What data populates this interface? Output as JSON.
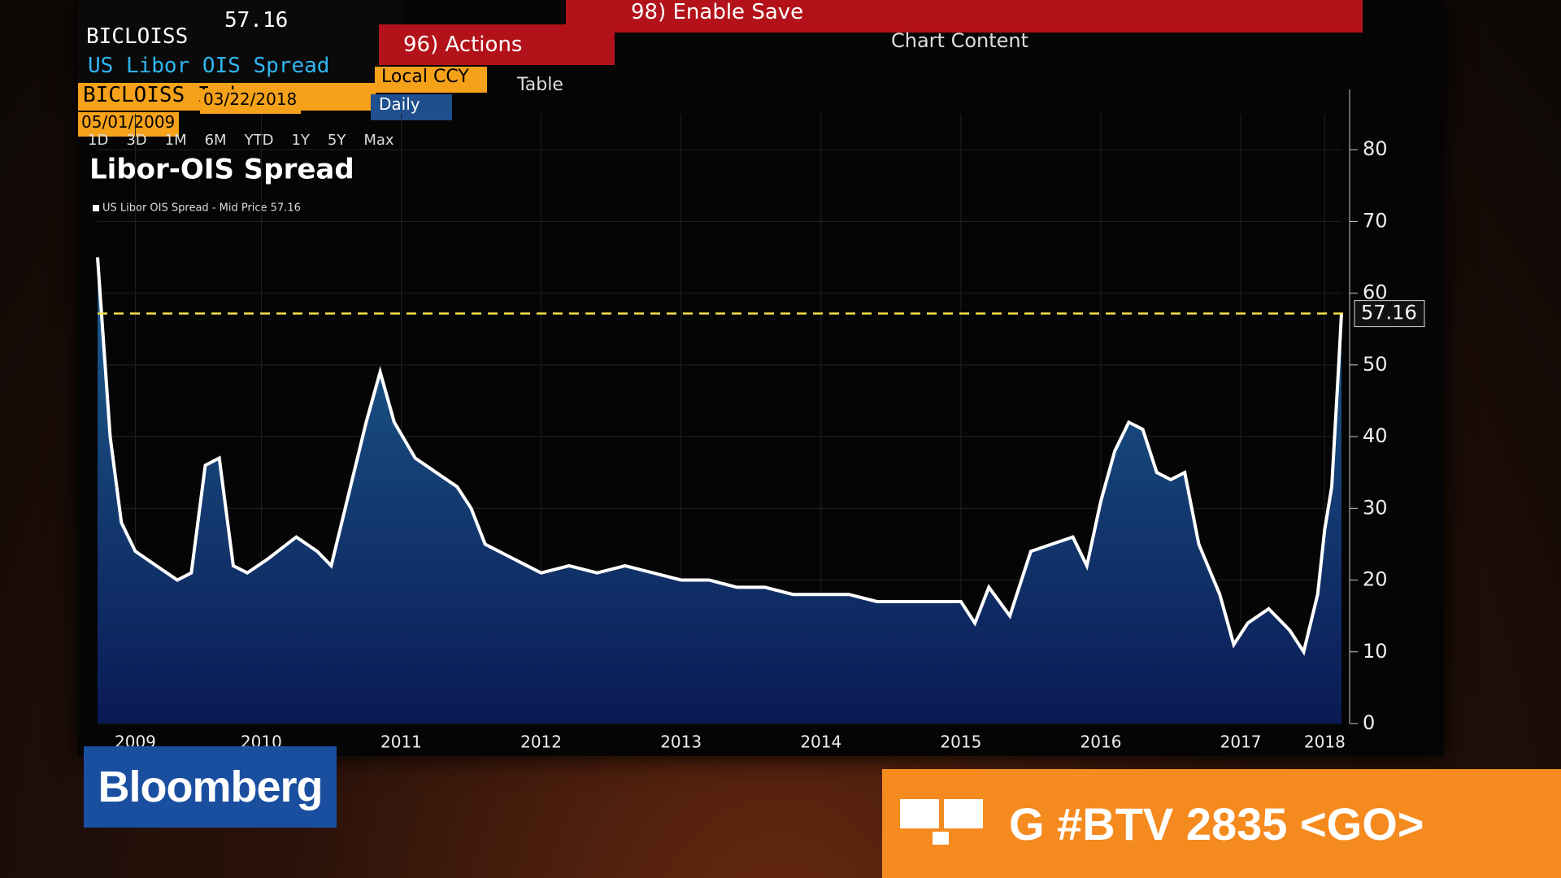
{
  "header": {
    "ticker": "BICLOISS",
    "price": "57.16",
    "security_name": "US Libor OIS Spread",
    "security_id": "BICLOISS Index",
    "start_date": "05/01/2009",
    "end_date": "03/22/2018",
    "ranges": [
      "1D",
      "3D",
      "1M",
      "6M",
      "YTD",
      "1Y",
      "5Y",
      "Max"
    ],
    "actions": "96) Actions",
    "enable_save": "98) Enable Save",
    "currency": "Local CCY",
    "frequency": "Daily",
    "table": "Table",
    "chart_content": "Chart Content"
  },
  "overlay": {
    "brand": "Bloomberg",
    "ticker_text": "G #BTV 2835 <GO>"
  },
  "chart_data": {
    "type": "area",
    "title": "Libor-OIS Spread",
    "x": [
      2009.33,
      2009.42,
      2009.5,
      2009.6,
      2009.75,
      2009.9,
      2010.0,
      2010.1,
      2010.2,
      2010.3,
      2010.4,
      2010.55,
      2010.75,
      2010.9,
      2011.0,
      2011.1,
      2011.25,
      2011.35,
      2011.45,
      2011.6,
      2011.75,
      2011.9,
      2012.0,
      2012.1,
      2012.3,
      2012.5,
      2012.7,
      2012.9,
      2013.1,
      2013.3,
      2013.5,
      2013.7,
      2013.9,
      2014.1,
      2014.3,
      2014.5,
      2014.7,
      2014.9,
      2015.1,
      2015.3,
      2015.5,
      2015.6,
      2015.7,
      2015.85,
      2016.0,
      2016.15,
      2016.3,
      2016.4,
      2016.5,
      2016.6,
      2016.7,
      2016.8,
      2016.9,
      2017.0,
      2017.1,
      2017.2,
      2017.35,
      2017.45,
      2017.55,
      2017.7,
      2017.85,
      2017.95,
      2018.05,
      2018.1,
      2018.15,
      2018.2,
      2018.22
    ],
    "series": [
      {
        "name": "US Libor OIS Spread - Mid Price 57.16",
        "color": "#ffffff",
        "values": [
          65,
          40,
          28,
          24,
          22,
          20,
          21,
          36,
          37,
          22,
          21,
          23,
          26,
          24,
          22,
          30,
          42,
          49,
          42,
          37,
          35,
          33,
          30,
          25,
          23,
          21,
          22,
          21,
          22,
          21,
          20,
          20,
          19,
          19,
          18,
          18,
          18,
          17,
          17,
          17,
          17,
          14,
          19,
          15,
          24,
          25,
          26,
          22,
          31,
          38,
          42,
          41,
          35,
          34,
          35,
          25,
          18,
          11,
          14,
          16,
          13,
          10,
          18,
          27,
          33,
          50,
          57.16
        ]
      }
    ],
    "reference_line": 57.16,
    "xlim": [
      2009.33,
      2018.22
    ],
    "xticks": [
      {
        "value": 2009.6,
        "label": "2009"
      },
      {
        "value": 2010.5,
        "label": "2010"
      },
      {
        "value": 2011.5,
        "label": "2011"
      },
      {
        "value": 2012.5,
        "label": "2012"
      },
      {
        "value": 2013.5,
        "label": "2013"
      },
      {
        "value": 2014.5,
        "label": "2014"
      },
      {
        "value": 2015.5,
        "label": "2015"
      },
      {
        "value": 2016.5,
        "label": "2016"
      },
      {
        "value": 2017.5,
        "label": "2017"
      },
      {
        "value": 2018.1,
        "label": "2018"
      }
    ],
    "ylim": [
      0,
      85
    ],
    "yticks": [
      0,
      10,
      20,
      30,
      40,
      50,
      60,
      70,
      80
    ],
    "grid": true
  }
}
